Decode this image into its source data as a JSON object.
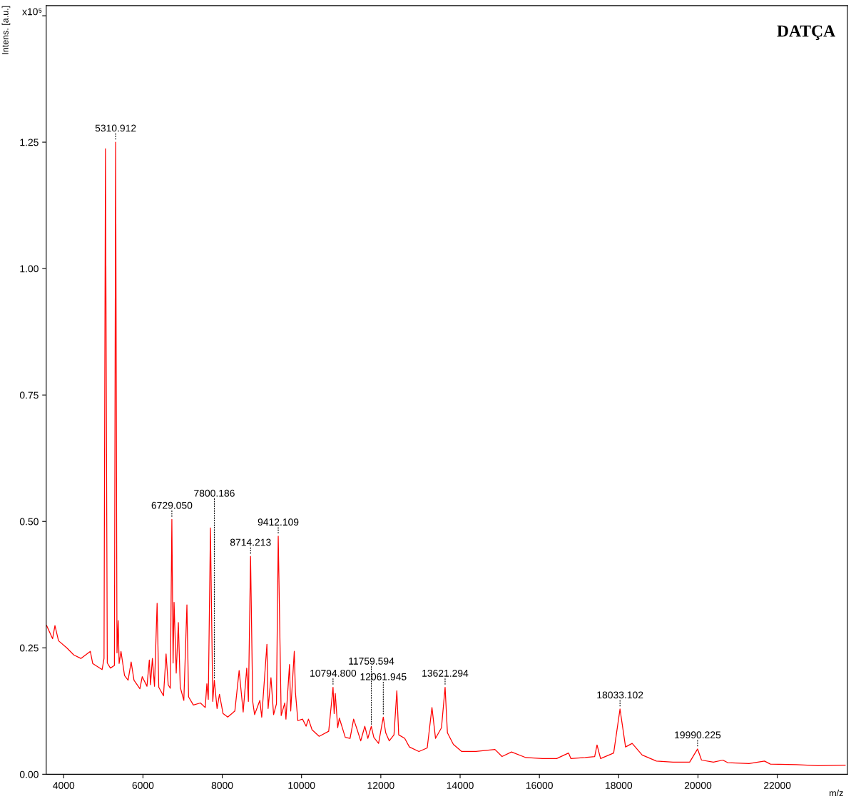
{
  "chart_data": {
    "type": "line",
    "title": "DATÇA",
    "xlabel": "m/z",
    "ylabel": "Intens. [a.u.]",
    "x": [
      3570,
      3720,
      3780,
      3870,
      4077,
      4255,
      4434,
      4673,
      4732,
      4970,
      5018,
      5054,
      5100,
      5179,
      5280,
      5310.912,
      5345,
      5375,
      5399,
      5446,
      5536,
      5625,
      5702,
      5774,
      5923,
      5982,
      6101,
      6161,
      6190,
      6238,
      6291,
      6357,
      6399,
      6518,
      6583,
      6637,
      6690,
      6729.05,
      6760,
      6785,
      6839,
      6893,
      6941,
      7031,
      7109,
      7151,
      7271,
      7450,
      7571,
      7612,
      7648,
      7702,
      7761,
      7800.186,
      7869,
      7930,
      8020,
      8139,
      8318,
      8426,
      8528,
      8618,
      8660,
      8714.213,
      8768,
      8816,
      8948,
      8996,
      9127,
      9157,
      9229,
      9295,
      9367,
      9412.109,
      9487,
      9577,
      9607,
      9697,
      9727,
      9817,
      9846,
      9907,
      10025,
      10115,
      10175,
      10265,
      10445,
      10685,
      10794.8,
      10823,
      10851,
      10912,
      10954,
      11103,
      11224,
      11314,
      11404,
      11493,
      11596,
      11673,
      11759.594,
      11823,
      11943,
      12061.945,
      12123,
      12212,
      12332,
      12404,
      12451,
      12602,
      12721,
      12961,
      13170,
      13290,
      13380,
      13530,
      13621.294,
      13680,
      13830,
      14040,
      14400,
      14878,
      15057,
      15297,
      15657,
      16076,
      16435,
      16735,
      16795,
      17154,
      17394,
      17453,
      17543,
      17873,
      18033.102,
      18173,
      18340,
      18592,
      18951,
      19370,
      19790,
      19990.225,
      20089,
      20389,
      20629,
      20748,
      21288,
      21677,
      21826,
      22486,
      23025,
      23713
    ],
    "series": [
      {
        "color": "#ff0000",
        "values": [
          0.294,
          0.268,
          0.294,
          0.264,
          0.25,
          0.236,
          0.229,
          0.243,
          0.219,
          0.207,
          0.229,
          1.237,
          0.22,
          0.21,
          0.215,
          1.25,
          0.24,
          0.304,
          0.219,
          0.243,
          0.195,
          0.186,
          0.222,
          0.186,
          0.169,
          0.193,
          0.174,
          0.226,
          0.177,
          0.229,
          0.174,
          0.338,
          0.172,
          0.155,
          0.238,
          0.177,
          0.17,
          0.504,
          0.22,
          0.34,
          0.2,
          0.3,
          0.172,
          0.146,
          0.335,
          0.153,
          0.137,
          0.141,
          0.132,
          0.179,
          0.148,
          0.487,
          0.144,
          0.186,
          0.13,
          0.158,
          0.12,
          0.113,
          0.125,
          0.205,
          0.123,
          0.21,
          0.144,
          0.431,
          0.144,
          0.118,
          0.146,
          0.113,
          0.257,
          0.13,
          0.191,
          0.118,
          0.139,
          0.471,
          0.116,
          0.141,
          0.109,
          0.217,
          0.125,
          0.243,
          0.162,
          0.106,
          0.109,
          0.095,
          0.109,
          0.088,
          0.075,
          0.085,
          0.172,
          0.12,
          0.16,
          0.092,
          0.111,
          0.073,
          0.071,
          0.109,
          0.088,
          0.066,
          0.095,
          0.071,
          0.095,
          0.073,
          0.061,
          0.113,
          0.082,
          0.066,
          0.078,
          0.165,
          0.078,
          0.071,
          0.054,
          0.045,
          0.052,
          0.132,
          0.071,
          0.092,
          0.172,
          0.082,
          0.059,
          0.045,
          0.045,
          0.049,
          0.035,
          0.044,
          0.033,
          0.031,
          0.031,
          0.042,
          0.031,
          0.033,
          0.035,
          0.058,
          0.031,
          0.042,
          0.129,
          0.054,
          0.061,
          0.038,
          0.026,
          0.024,
          0.024,
          0.05,
          0.028,
          0.024,
          0.028,
          0.023,
          0.021,
          0.026,
          0.02,
          0.019,
          0.017,
          0.018
        ]
      }
    ],
    "xlim": [
      3560,
      23770
    ],
    "ylim": [
      0,
      1.52
    ],
    "xticks": [
      4000,
      6000,
      8000,
      10000,
      12000,
      14000,
      16000,
      18000,
      20000,
      22000
    ],
    "yticks": [
      {
        "value": 0,
        "label": "0.00"
      },
      {
        "value": 0.25,
        "label": "0.25"
      },
      {
        "value": 0.5,
        "label": "0.50"
      },
      {
        "value": 0.75,
        "label": "0.75"
      },
      {
        "value": 1.0,
        "label": "1.00"
      },
      {
        "value": 1.25,
        "label": "1.25"
      },
      {
        "value": 1.5,
        "label": null
      }
    ],
    "grid": false,
    "line_style": "solid",
    "annotations": [
      "x10⁵",
      {
        "text": "5310.912",
        "x": 5310.912,
        "y": 1.25
      },
      {
        "text": "6729.050",
        "x": 6729.05,
        "y": 0.504
      },
      {
        "text": "7800.186",
        "x": 7800.186,
        "y": 0.186
      },
      {
        "text": "8714.213",
        "x": 8714.213,
        "y": 0.431
      },
      {
        "text": "9412.109",
        "x": 9412.109,
        "y": 0.471
      },
      {
        "text": "10794.800",
        "x": 10794.8,
        "y": 0.172
      },
      {
        "text": "11759.594",
        "x": 11759.594,
        "y": 0.095
      },
      {
        "text": "12061.945",
        "x": 12061.945,
        "y": 0.113
      },
      {
        "text": "13621.294",
        "x": 13621.294,
        "y": 0.172
      },
      {
        "text": "18033.102",
        "x": 18033.102,
        "y": 0.129
      },
      {
        "text": "19990.225",
        "x": 19990.225,
        "y": 0.05
      }
    ]
  }
}
